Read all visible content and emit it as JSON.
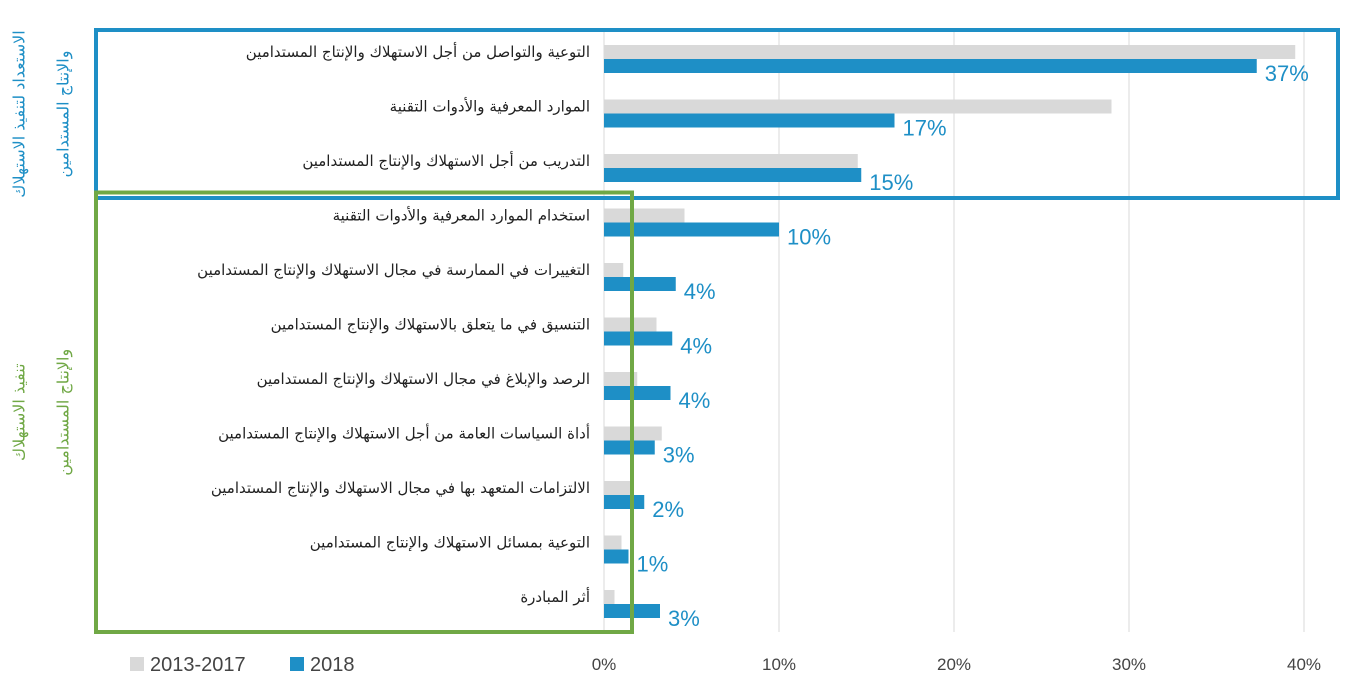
{
  "chart_data": {
    "type": "bar",
    "orientation": "horizontal",
    "categories": [
      "التوعية والتواصل من أجل الاستهلاك والإنتاج المستدامين",
      "الموارد المعرفية والأدوات التقنية",
      "التدريب من أجل الاستهلاك والإنتاج المستدامين",
      "استخدام الموارد المعرفية والأدوات التقنية",
      "التغييرات في الممارسة في مجال  الاستهلاك والإنتاج المستدامين",
      "التنسيق في ما يتعلق بالاستهلاك والإنتاج المستدامين",
      "الرصد والإبلاغ في مجال  الاستهلاك والإنتاج المستدامين",
      "أداة السياسات العامة من أجل الاستهلاك والإنتاج المستدامين",
      "الالتزامات المتعهد بها في مجال  الاستهلاك والإنتاج المستدامين",
      "التوعية  بمسائل الاستهلاك والإنتاج المستدامين",
      "أثر المبادرة"
    ],
    "series": [
      {
        "name": "2013-2017",
        "color": "#d9d9d9",
        "values": [
          39.5,
          29,
          14.5,
          4.6,
          1.1,
          3.0,
          1.9,
          3.3,
          1.5,
          1.0,
          0.6
        ]
      },
      {
        "name": "2018",
        "color": "#1e8fc6",
        "values": [
          37.3,
          16.6,
          14.7,
          10,
          4.1,
          3.9,
          3.8,
          2.9,
          2.3,
          1.4,
          3.2
        ],
        "value_labels": [
          "37%",
          "17%",
          "15%",
          "10%",
          "4%",
          "4%",
          "4%",
          "3%",
          "2%",
          "1%",
          "3%"
        ]
      }
    ],
    "xlim": [
      0,
      40
    ],
    "xticks": [
      {
        "value": 0,
        "label": "0%"
      },
      {
        "value": 10,
        "label": "10%"
      },
      {
        "value": 20,
        "label": "20%"
      },
      {
        "value": 30,
        "label": "30%"
      },
      {
        "value": 40,
        "label": "40%"
      }
    ],
    "grid": true,
    "legend": "bottom-left",
    "groups": [
      {
        "lines": [
          "الاستعداد لتنفيذ الاستهلاك",
          "والإنتاج المستدامين"
        ],
        "color": "#1e8fc6",
        "first": 0,
        "last": 2
      },
      {
        "lines": [
          "تنفيذ الاستهلاك",
          "والإنتاج المستدامين"
        ],
        "color": "#70a845",
        "first": 3,
        "last": 10
      }
    ]
  }
}
